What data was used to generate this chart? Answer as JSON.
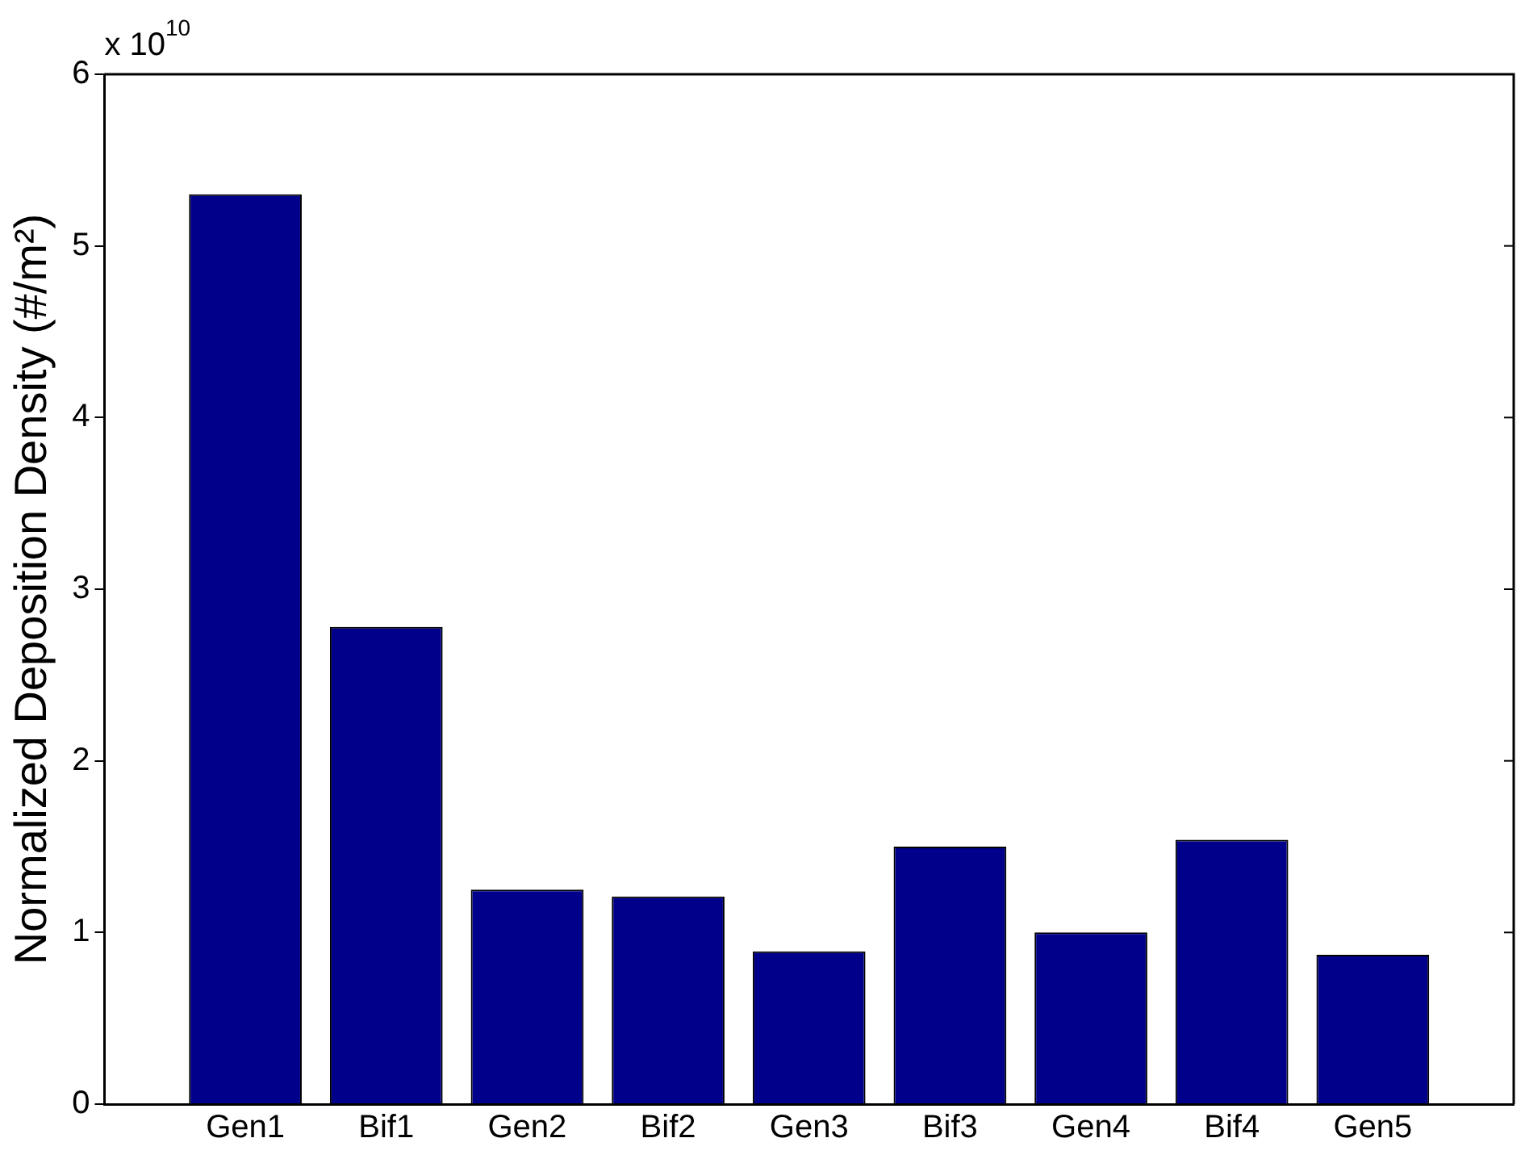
{
  "chart_data": {
    "type": "bar",
    "ylabel": "Normalized Deposition Density (#/m²)",
    "annotations": [
      "x 10$^{10}$"
    ],
    "categories": [
      "Gen1",
      "Bif1",
      "Gen2",
      "Bif2",
      "Gen3",
      "Bif3",
      "Gen4",
      "Bif4",
      "Gen5"
    ],
    "values": [
      5.3,
      2.78,
      1.25,
      1.21,
      0.89,
      1.5,
      1.0,
      1.54,
      0.87
    ],
    "color": "#00008b",
    "ylim": [
      0,
      6
    ],
    "yticks": [
      0,
      1,
      2,
      3,
      4,
      5,
      6
    ],
    "grid": false,
    "legend": false
  }
}
